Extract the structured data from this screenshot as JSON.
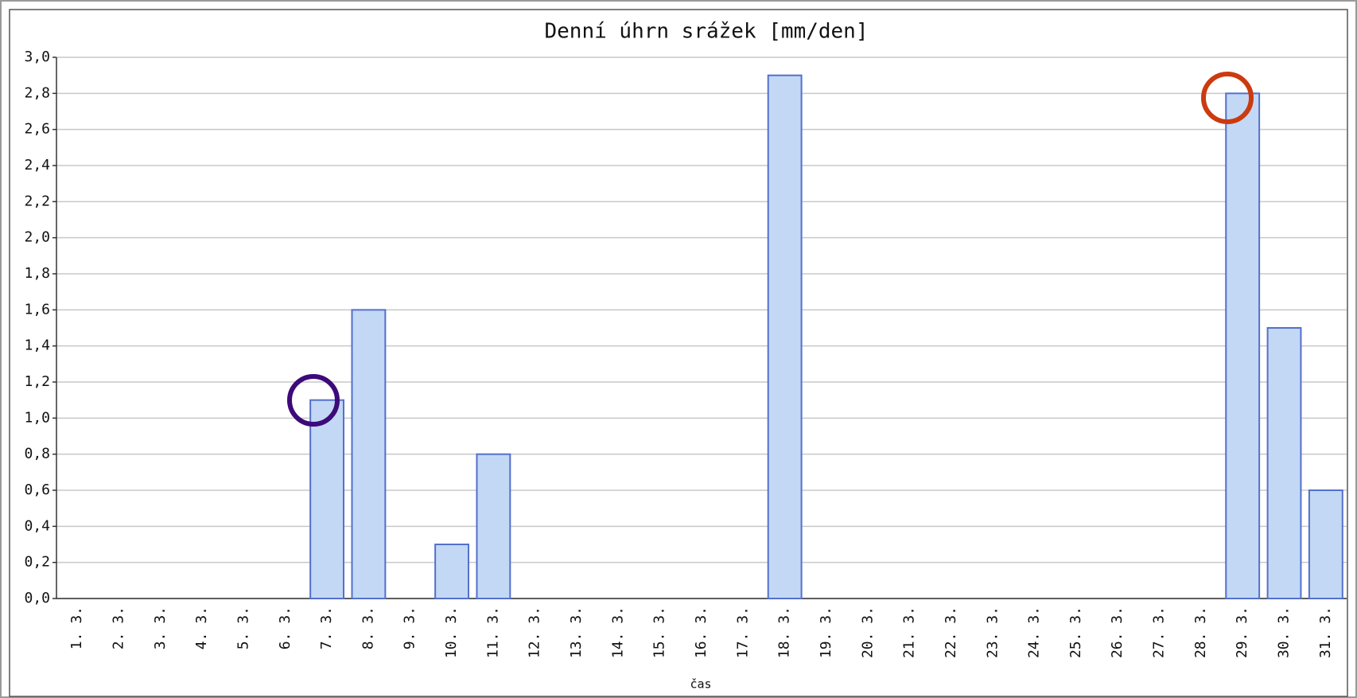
{
  "chart_data": {
    "type": "bar",
    "title": "Denní úhrn srážek [mm/den]",
    "x_label": "čas",
    "categories": [
      "1. 3.",
      "2. 3.",
      "3. 3.",
      "4. 3.",
      "5. 3.",
      "6. 3.",
      "7. 3.",
      "8. 3.",
      "9. 3.",
      "10. 3.",
      "11. 3.",
      "12. 3.",
      "13. 3.",
      "14. 3.",
      "15. 3.",
      "16. 3.",
      "17. 3.",
      "18. 3.",
      "19. 3.",
      "20. 3.",
      "21. 3.",
      "22. 3.",
      "23. 3.",
      "24. 3.",
      "25. 3.",
      "26. 3.",
      "27. 3.",
      "28. 3.",
      "29. 3.",
      "30. 3.",
      "31. 3."
    ],
    "values": [
      0,
      0,
      0,
      0,
      0,
      0,
      1.1,
      1.6,
      0,
      0.3,
      0.8,
      0,
      0,
      0,
      0,
      0,
      0,
      2.9,
      0,
      0,
      0,
      0,
      0,
      0,
      0,
      0,
      0,
      0,
      2.8,
      1.5,
      0.6
    ],
    "color": "#c3d8f5",
    "edge_color": "#5470cc",
    "ylim": [
      0,
      3
    ],
    "yticks": [
      {
        "value": 0,
        "label": "0,0"
      },
      {
        "value": 0.2,
        "label": "0,2"
      },
      {
        "value": 0.4,
        "label": "0,4"
      },
      {
        "value": 0.6,
        "label": "0,6"
      },
      {
        "value": 0.8,
        "label": "0,8"
      },
      {
        "value": 1,
        "label": "1,0"
      },
      {
        "value": 1.2,
        "label": "1,2"
      },
      {
        "value": 1.4,
        "label": "1,4"
      },
      {
        "value": 1.6,
        "label": "1,6"
      },
      {
        "value": 1.8,
        "label": "1,8"
      },
      {
        "value": 2,
        "label": "2,0"
      },
      {
        "value": 2.2,
        "label": "2,2"
      },
      {
        "value": 2.4,
        "label": "2,4"
      },
      {
        "value": 2.6,
        "label": "2,6"
      },
      {
        "value": 2.8,
        "label": "2,8"
      },
      {
        "value": 3,
        "label": "3,0"
      }
    ],
    "grid": true
  }
}
